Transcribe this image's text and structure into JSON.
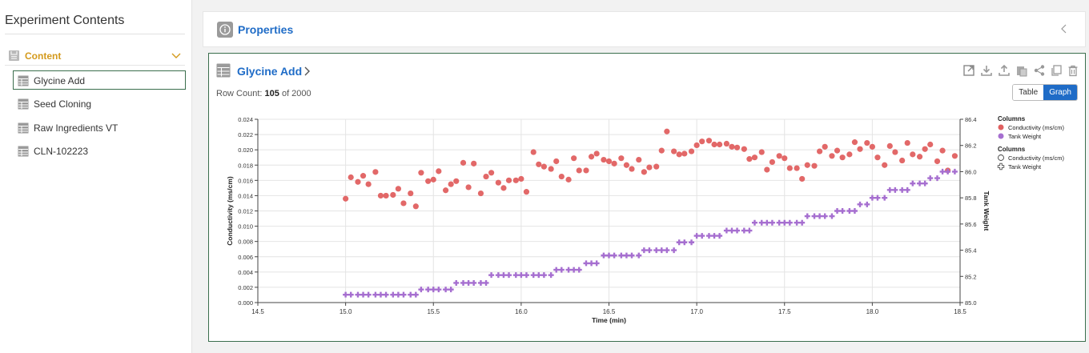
{
  "sidebar": {
    "title": "Experiment Contents",
    "content_label": "Content",
    "items": [
      {
        "label": "Glycine Add",
        "selected": true
      },
      {
        "label": "Seed Cloning",
        "selected": false
      },
      {
        "label": "Raw Ingredients VT",
        "selected": false
      },
      {
        "label": "CLN-102223",
        "selected": false
      }
    ]
  },
  "properties": {
    "title": "Properties"
  },
  "panel": {
    "title": "Glycine Add",
    "row_count_prefix": "Row Count: ",
    "row_count": "105",
    "row_count_suffix": " of 2000",
    "toggle": {
      "table_label": "Table",
      "graph_label": "Graph",
      "active": "Graph"
    },
    "toolbar_icons": [
      "open-external-icon",
      "download-icon",
      "upload-icon",
      "paste-icon",
      "share-icon",
      "copy-icon",
      "delete-icon"
    ]
  },
  "colors": {
    "accent": "#1f6cc7",
    "content_label": "#d49a1c",
    "selected_border": "#3b6e4d",
    "conductivity": "#e06060",
    "tank_weight": "#a66fd0"
  },
  "chart_data": {
    "type": "scatter",
    "xlabel": "Time (min)",
    "ylabel": "Conductivity (ms/cm)",
    "y2label": "Tank Weight",
    "xlim": [
      14.5,
      18.5
    ],
    "ylim": [
      0.0,
      0.024
    ],
    "y2lim": [
      85.0,
      86.4
    ],
    "xticks": [
      "14.5",
      "15.0",
      "15.5",
      "16.0",
      "16.5",
      "17.0",
      "17.5",
      "18.0",
      "18.5"
    ],
    "yticks": [
      "0.000",
      "0.002",
      "0.004",
      "0.006",
      "0.008",
      "0.010",
      "0.012",
      "0.014",
      "0.016",
      "0.018",
      "0.020",
      "0.022",
      "0.024"
    ],
    "y2ticks": [
      "85.0",
      "85.2",
      "85.4",
      "85.6",
      "85.8",
      "86.0",
      "86.2",
      "86.4"
    ],
    "grid": true,
    "legend_placement": "right",
    "legend": [
      {
        "heading": "Columns",
        "entries": [
          {
            "label": "Conductivity (ms/cm)",
            "style": "filled-circle",
            "series": "conductivity"
          },
          {
            "label": "Tank Weight",
            "style": "filled-circle",
            "series": "tank_weight"
          }
        ]
      },
      {
        "heading": "Columns",
        "entries": [
          {
            "label": "Conductivity (ms/cm)",
            "style": "open-circle"
          },
          {
            "label": "Tank Weight",
            "style": "open-cross"
          }
        ]
      }
    ],
    "series": [
      {
        "name": "Conductivity (ms/cm)",
        "key": "conductivity",
        "axis": "left",
        "marker": "circle",
        "points": [
          [
            15.0,
            0.0136
          ],
          [
            15.03,
            0.0164
          ],
          [
            15.07,
            0.0158
          ],
          [
            15.1,
            0.0166
          ],
          [
            15.13,
            0.0155
          ],
          [
            15.17,
            0.0171
          ],
          [
            15.2,
            0.014
          ],
          [
            15.23,
            0.014
          ],
          [
            15.27,
            0.0141
          ],
          [
            15.3,
            0.0149
          ],
          [
            15.33,
            0.013
          ],
          [
            15.37,
            0.0143
          ],
          [
            15.4,
            0.0126
          ],
          [
            15.43,
            0.017
          ],
          [
            15.47,
            0.0159
          ],
          [
            15.5,
            0.0161
          ],
          [
            15.53,
            0.0172
          ],
          [
            15.57,
            0.0147
          ],
          [
            15.6,
            0.0155
          ],
          [
            15.63,
            0.0159
          ],
          [
            15.67,
            0.0183
          ],
          [
            15.7,
            0.0151
          ],
          [
            15.73,
            0.0182
          ],
          [
            15.77,
            0.0143
          ],
          [
            15.8,
            0.0165
          ],
          [
            15.83,
            0.017
          ],
          [
            15.87,
            0.0157
          ],
          [
            15.9,
            0.015
          ],
          [
            15.93,
            0.016
          ],
          [
            15.97,
            0.016
          ],
          [
            16.0,
            0.0162
          ],
          [
            16.03,
            0.0145
          ],
          [
            16.07,
            0.0197
          ],
          [
            16.1,
            0.0181
          ],
          [
            16.13,
            0.0178
          ],
          [
            16.17,
            0.0175
          ],
          [
            16.2,
            0.0185
          ],
          [
            16.23,
            0.0165
          ],
          [
            16.27,
            0.0161
          ],
          [
            16.3,
            0.0189
          ],
          [
            16.33,
            0.0173
          ],
          [
            16.37,
            0.0173
          ],
          [
            16.4,
            0.0191
          ],
          [
            16.43,
            0.0195
          ],
          [
            16.47,
            0.0187
          ],
          [
            16.5,
            0.0185
          ],
          [
            16.53,
            0.0182
          ],
          [
            16.57,
            0.0189
          ],
          [
            16.6,
            0.018
          ],
          [
            16.63,
            0.0175
          ],
          [
            16.67,
            0.0187
          ],
          [
            16.7,
            0.0171
          ],
          [
            16.73,
            0.0177
          ],
          [
            16.77,
            0.0178
          ],
          [
            16.8,
            0.0199
          ],
          [
            16.83,
            0.0224
          ],
          [
            16.87,
            0.0198
          ],
          [
            16.9,
            0.0194
          ],
          [
            16.93,
            0.0195
          ],
          [
            16.97,
            0.0198
          ],
          [
            17.0,
            0.0206
          ],
          [
            17.03,
            0.0211
          ],
          [
            17.07,
            0.0212
          ],
          [
            17.1,
            0.0207
          ],
          [
            17.13,
            0.0207
          ],
          [
            17.17,
            0.0208
          ],
          [
            17.2,
            0.0204
          ],
          [
            17.23,
            0.0203
          ],
          [
            17.27,
            0.0201
          ],
          [
            17.3,
            0.0188
          ],
          [
            17.33,
            0.019
          ],
          [
            17.37,
            0.0197
          ],
          [
            17.4,
            0.0174
          ],
          [
            17.43,
            0.0184
          ],
          [
            17.47,
            0.0192
          ],
          [
            17.5,
            0.0189
          ],
          [
            17.53,
            0.0176
          ],
          [
            17.57,
            0.0176
          ],
          [
            17.6,
            0.0162
          ],
          [
            17.63,
            0.018
          ],
          [
            17.67,
            0.0179
          ],
          [
            17.7,
            0.0198
          ],
          [
            17.73,
            0.0204
          ],
          [
            17.77,
            0.0192
          ],
          [
            17.8,
            0.0199
          ],
          [
            17.83,
            0.019
          ],
          [
            17.87,
            0.0194
          ],
          [
            17.9,
            0.021
          ],
          [
            17.93,
            0.0201
          ],
          [
            17.97,
            0.0209
          ],
          [
            18.0,
            0.0204
          ],
          [
            18.03,
            0.019
          ],
          [
            18.07,
            0.018
          ],
          [
            18.1,
            0.0205
          ],
          [
            18.13,
            0.0197
          ],
          [
            18.17,
            0.0186
          ],
          [
            18.2,
            0.0209
          ],
          [
            18.23,
            0.0194
          ],
          [
            18.27,
            0.0191
          ],
          [
            18.3,
            0.0201
          ],
          [
            18.33,
            0.0207
          ],
          [
            18.37,
            0.0185
          ],
          [
            18.4,
            0.0199
          ],
          [
            18.43,
            0.0173
          ],
          [
            18.47,
            0.0192
          ]
        ]
      },
      {
        "name": "Tank Weight",
        "key": "tank_weight",
        "axis": "right",
        "marker": "cross",
        "points": [
          [
            15.0,
            85.06
          ],
          [
            15.03,
            85.06
          ],
          [
            15.07,
            85.06
          ],
          [
            15.1,
            85.06
          ],
          [
            15.13,
            85.06
          ],
          [
            15.17,
            85.06
          ],
          [
            15.2,
            85.06
          ],
          [
            15.23,
            85.06
          ],
          [
            15.27,
            85.06
          ],
          [
            15.3,
            85.06
          ],
          [
            15.33,
            85.06
          ],
          [
            15.37,
            85.06
          ],
          [
            15.4,
            85.06
          ],
          [
            15.43,
            85.1
          ],
          [
            15.47,
            85.1
          ],
          [
            15.5,
            85.1
          ],
          [
            15.53,
            85.1
          ],
          [
            15.57,
            85.1
          ],
          [
            15.6,
            85.1
          ],
          [
            15.63,
            85.15
          ],
          [
            15.67,
            85.15
          ],
          [
            15.7,
            85.15
          ],
          [
            15.73,
            85.15
          ],
          [
            15.77,
            85.15
          ],
          [
            15.8,
            85.15
          ],
          [
            15.83,
            85.21
          ],
          [
            15.87,
            85.21
          ],
          [
            15.9,
            85.21
          ],
          [
            15.93,
            85.21
          ],
          [
            15.97,
            85.21
          ],
          [
            16.0,
            85.21
          ],
          [
            16.03,
            85.21
          ],
          [
            16.07,
            85.21
          ],
          [
            16.1,
            85.21
          ],
          [
            16.13,
            85.21
          ],
          [
            16.17,
            85.21
          ],
          [
            16.2,
            85.25
          ],
          [
            16.23,
            85.25
          ],
          [
            16.27,
            85.25
          ],
          [
            16.3,
            85.25
          ],
          [
            16.33,
            85.25
          ],
          [
            16.37,
            85.3
          ],
          [
            16.4,
            85.3
          ],
          [
            16.43,
            85.3
          ],
          [
            16.47,
            85.36
          ],
          [
            16.5,
            85.36
          ],
          [
            16.53,
            85.36
          ],
          [
            16.57,
            85.36
          ],
          [
            16.6,
            85.36
          ],
          [
            16.63,
            85.36
          ],
          [
            16.67,
            85.36
          ],
          [
            16.7,
            85.4
          ],
          [
            16.73,
            85.4
          ],
          [
            16.77,
            85.4
          ],
          [
            16.8,
            85.4
          ],
          [
            16.83,
            85.4
          ],
          [
            16.87,
            85.4
          ],
          [
            16.9,
            85.46
          ],
          [
            16.93,
            85.46
          ],
          [
            16.97,
            85.46
          ],
          [
            17.0,
            85.51
          ],
          [
            17.03,
            85.51
          ],
          [
            17.07,
            85.51
          ],
          [
            17.1,
            85.51
          ],
          [
            17.13,
            85.51
          ],
          [
            17.17,
            85.55
          ],
          [
            17.2,
            85.55
          ],
          [
            17.23,
            85.55
          ],
          [
            17.27,
            85.55
          ],
          [
            17.3,
            85.55
          ],
          [
            17.33,
            85.61
          ],
          [
            17.37,
            85.61
          ],
          [
            17.4,
            85.61
          ],
          [
            17.43,
            85.61
          ],
          [
            17.47,
            85.61
          ],
          [
            17.5,
            85.61
          ],
          [
            17.53,
            85.61
          ],
          [
            17.57,
            85.61
          ],
          [
            17.6,
            85.61
          ],
          [
            17.63,
            85.66
          ],
          [
            17.67,
            85.66
          ],
          [
            17.7,
            85.66
          ],
          [
            17.73,
            85.66
          ],
          [
            17.77,
            85.66
          ],
          [
            17.8,
            85.7
          ],
          [
            17.83,
            85.7
          ],
          [
            17.87,
            85.7
          ],
          [
            17.9,
            85.7
          ],
          [
            17.93,
            85.75
          ],
          [
            17.97,
            85.75
          ],
          [
            18.0,
            85.8
          ],
          [
            18.03,
            85.8
          ],
          [
            18.07,
            85.8
          ],
          [
            18.1,
            85.86
          ],
          [
            18.13,
            85.86
          ],
          [
            18.17,
            85.86
          ],
          [
            18.2,
            85.86
          ],
          [
            18.23,
            85.91
          ],
          [
            18.27,
            85.91
          ],
          [
            18.3,
            85.91
          ],
          [
            18.33,
            85.95
          ],
          [
            18.37,
            85.95
          ],
          [
            18.4,
            86.0
          ],
          [
            18.43,
            86.0
          ],
          [
            18.47,
            86.0
          ]
        ]
      }
    ]
  }
}
